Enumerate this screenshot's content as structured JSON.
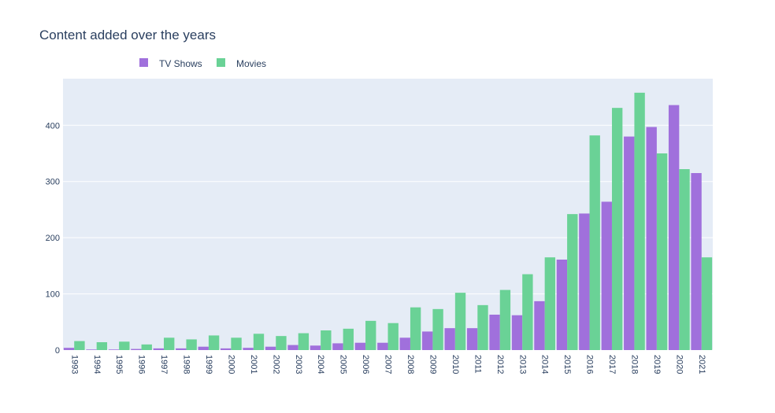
{
  "chart_data": {
    "type": "bar",
    "title": "Content added over the years",
    "xlabel": "",
    "ylabel": "",
    "ylim": [
      0,
      483
    ],
    "y_ticks": [
      0,
      100,
      200,
      300,
      400
    ],
    "grid": true,
    "legend_placement": "top-left, horizontal",
    "plot_background": "#e5ecf6",
    "categories": [
      "1993",
      "1994",
      "1995",
      "1996",
      "1997",
      "1998",
      "1999",
      "2000",
      "2001",
      "2002",
      "2003",
      "2004",
      "2005",
      "2006",
      "2007",
      "2008",
      "2009",
      "2010",
      "2011",
      "2012",
      "2013",
      "2014",
      "2015",
      "2016",
      "2017",
      "2018",
      "2019",
      "2020",
      "2021"
    ],
    "series": [
      {
        "name": "TV Shows",
        "color": "#a070dc",
        "values": [
          4,
          1,
          1,
          2,
          3,
          3,
          6,
          3,
          4,
          6,
          9,
          8,
          12,
          13,
          13,
          22,
          33,
          39,
          39,
          63,
          62,
          87,
          161,
          243,
          264,
          380,
          397,
          436,
          315
        ]
      },
      {
        "name": "Movies",
        "color": "#6ad296",
        "values": [
          16,
          14,
          15,
          10,
          22,
          19,
          26,
          22,
          29,
          25,
          30,
          35,
          38,
          52,
          48,
          76,
          73,
          102,
          80,
          107,
          135,
          165,
          242,
          382,
          431,
          458,
          350,
          322,
          165
        ]
      }
    ]
  }
}
